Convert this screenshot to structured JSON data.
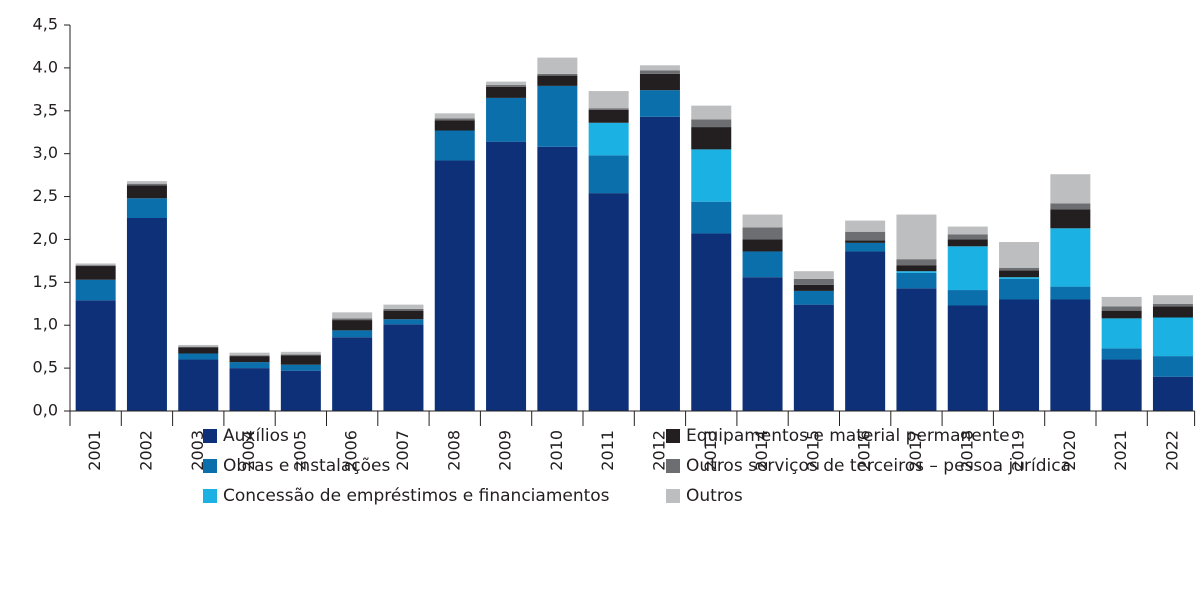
{
  "chart_data": {
    "type": "bar",
    "stacked": true,
    "categories": [
      "2001",
      "2002",
      "2003",
      "2004",
      "2005",
      "2006",
      "2007",
      "2008",
      "2009",
      "2010",
      "2011",
      "2012",
      "2013",
      "2014",
      "2015",
      "2016",
      "2017",
      "2018",
      "2019",
      "2020",
      "2021",
      "2022"
    ],
    "series": [
      {
        "name": "Auxílios",
        "color": "#0d3078",
        "values": [
          1.29,
          2.25,
          0.6,
          0.5,
          0.47,
          0.86,
          1.01,
          2.92,
          3.14,
          3.08,
          2.54,
          3.43,
          2.07,
          1.56,
          1.24,
          1.86,
          1.43,
          1.23,
          1.3,
          1.3,
          0.6,
          0.4
        ]
      },
      {
        "name": "Obras e instalações",
        "color": "#0b6fac",
        "values": [
          0.24,
          0.23,
          0.07,
          0.07,
          0.07,
          0.08,
          0.06,
          0.35,
          0.51,
          0.71,
          0.44,
          0.31,
          0.37,
          0.3,
          0.16,
          0.1,
          0.18,
          0.18,
          0.24,
          0.15,
          0.13,
          0.24
        ]
      },
      {
        "name": "Concessão de empréstimos e financiamentos",
        "color": "#1bb1e2",
        "values": [
          0,
          0,
          0,
          0,
          0,
          0,
          0,
          0,
          0,
          0,
          0.38,
          0,
          0.61,
          0,
          0,
          0,
          0.02,
          0.51,
          0.02,
          0.68,
          0.35,
          0.45
        ]
      },
      {
        "name": "Equipamentos e material permanente",
        "color": "#231f20",
        "values": [
          0.16,
          0.15,
          0.07,
          0.07,
          0.11,
          0.12,
          0.1,
          0.12,
          0.13,
          0.12,
          0.15,
          0.19,
          0.26,
          0.14,
          0.07,
          0.03,
          0.07,
          0.08,
          0.08,
          0.22,
          0.09,
          0.13
        ]
      },
      {
        "name": "Outros serviços de terceiros – pessoa jurídica",
        "color": "#6d6e71",
        "values": [
          0.01,
          0.02,
          0.01,
          0.01,
          0.01,
          0.02,
          0.02,
          0.02,
          0.02,
          0.02,
          0.02,
          0.04,
          0.09,
          0.14,
          0.07,
          0.1,
          0.07,
          0.06,
          0.03,
          0.07,
          0.05,
          0.03
        ]
      },
      {
        "name": "Outros",
        "color": "#bcbec0",
        "values": [
          0.02,
          0.03,
          0.02,
          0.03,
          0.03,
          0.07,
          0.05,
          0.06,
          0.04,
          0.19,
          0.2,
          0.06,
          0.16,
          0.15,
          0.09,
          0.13,
          0.52,
          0.09,
          0.3,
          0.34,
          0.11,
          0.1
        ]
      }
    ],
    "ylim": [
      0,
      4.5
    ],
    "yticks": [
      {
        "value": 0,
        "label": "0,0"
      },
      {
        "value": 0.5,
        "label": "0,5"
      },
      {
        "value": 1,
        "label": "1,0"
      },
      {
        "value": 1.5,
        "label": "1,5"
      },
      {
        "value": 2,
        "label": "2,0"
      },
      {
        "value": 2.5,
        "label": "2,5"
      },
      {
        "value": 3,
        "label": "3,0"
      },
      {
        "value": 3.5,
        "label": "3,5"
      },
      {
        "value": 4,
        "label": "4.0"
      },
      {
        "value": 4.5,
        "label": "4,5"
      }
    ]
  }
}
